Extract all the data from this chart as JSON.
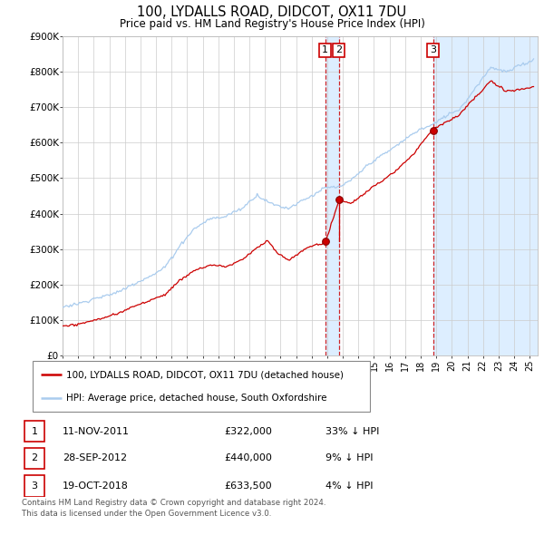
{
  "title": "100, LYDALLS ROAD, DIDCOT, OX11 7DU",
  "subtitle": "Price paid vs. HM Land Registry's House Price Index (HPI)",
  "background_color": "#ffffff",
  "grid_color": "#cccccc",
  "line_color_hpi": "#aaccee",
  "line_color_property": "#cc0000",
  "sale1_date_num": 2011.87,
  "sale1_price": 322000,
  "sale2_date_num": 2012.74,
  "sale2_price": 440000,
  "sale3_date_num": 2018.8,
  "sale3_price": 633500,
  "xmin": 1995.0,
  "xmax": 2025.5,
  "ymin": 0,
  "ymax": 900000,
  "yticks": [
    0,
    100000,
    200000,
    300000,
    400000,
    500000,
    600000,
    700000,
    800000,
    900000
  ],
  "ytick_labels": [
    "£0",
    "£100K",
    "£200K",
    "£300K",
    "£400K",
    "£500K",
    "£600K",
    "£700K",
    "£800K",
    "£900K"
  ],
  "xtick_years": [
    1995,
    1996,
    1997,
    1998,
    1999,
    2000,
    2001,
    2002,
    2003,
    2004,
    2005,
    2006,
    2007,
    2008,
    2009,
    2010,
    2011,
    2012,
    2013,
    2014,
    2015,
    2016,
    2017,
    2018,
    2019,
    2020,
    2021,
    2022,
    2023,
    2024,
    2025
  ],
  "legend_line1": "100, LYDALLS ROAD, DIDCOT, OX11 7DU (detached house)",
  "legend_line2": "HPI: Average price, detached house, South Oxfordshire",
  "footer_line1": "Contains HM Land Registry data © Crown copyright and database right 2024.",
  "footer_line2": "This data is licensed under the Open Government Licence v3.0.",
  "table_rows": [
    {
      "num": "1",
      "date": "11-NOV-2011",
      "price": "£322,000",
      "hpi": "33% ↓ HPI"
    },
    {
      "num": "2",
      "date": "28-SEP-2012",
      "price": "£440,000",
      "hpi": "9% ↓ HPI"
    },
    {
      "num": "3",
      "date": "19-OCT-2018",
      "price": "£633,500",
      "hpi": "4% ↓ HPI"
    }
  ],
  "highlight_color": "#ddeeff"
}
